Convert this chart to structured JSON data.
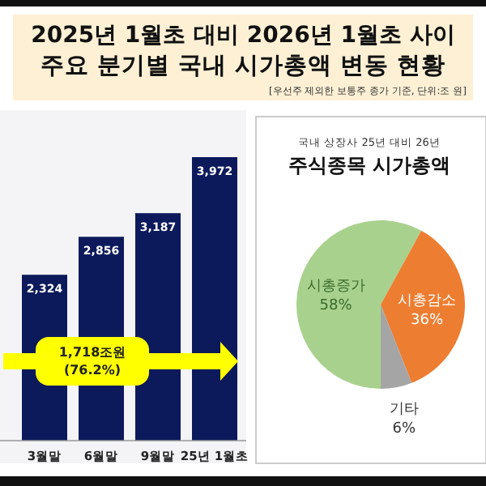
{
  "chart_data": [
    {
      "type": "bar",
      "title": "2025년 1월초 대비 2026년 1월초 사이",
      "subtitle": "주요 분기별 국내 시가총액 변동 현황",
      "categories": [
        "3월말",
        "6월말",
        "9월말",
        "25년 1월초"
      ],
      "values": [
        2324,
        2856,
        3187,
        3972
      ],
      "color": "#0c1a5c",
      "value_labels": [
        "2,324",
        "2,856",
        "3,187",
        "3,972"
      ],
      "annotations": [
        "[우선주 제외한 보통주 종가 기준, 단위:조 원]",
        "1,718조원\n(76.2%)"
      ]
    },
    {
      "type": "pie",
      "title": "주식종목 시가총액",
      "subtitle": "국내 상장사 25년 대비 26년",
      "categories": [
        "시총증가",
        "시총감소",
        "기타"
      ],
      "values": [
        58,
        36,
        6
      ],
      "colors": [
        "#a9d18e",
        "#ed7d31",
        "#a5a5a5"
      ],
      "value_labels": [
        "58%",
        "36%",
        "6%"
      ]
    }
  ]
}
